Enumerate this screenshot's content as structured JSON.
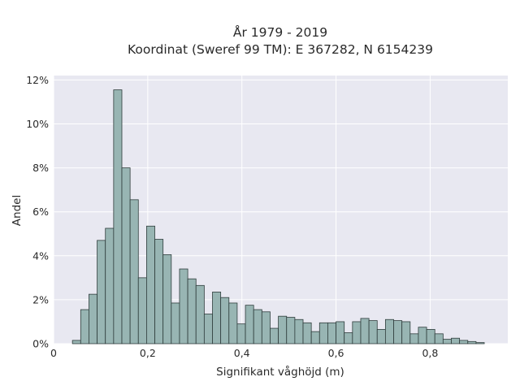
{
  "chart_data": {
    "type": "bar",
    "title": "År 1979 - 2019",
    "subtitle": "Koordinat (Sweref 99 TM): E 367282, N 6154239",
    "xlabel": "Signifikant våghöjd (m)",
    "ylabel": "Andel",
    "xlim": [
      0,
      0.965
    ],
    "ylim": [
      0,
      12.2
    ],
    "grid": true,
    "xticks": [
      0,
      0.2,
      0.4,
      0.6,
      0.8
    ],
    "xtick_labels": [
      "0",
      "0,2",
      "0,4",
      "0,6",
      "0,8"
    ],
    "yticks": [
      0,
      2,
      4,
      6,
      8,
      10,
      12
    ],
    "ytick_labels": [
      "0%",
      "2%",
      "4%",
      "6%",
      "8%",
      "10%",
      "12%"
    ],
    "bin_width": 0.0175,
    "bins_start": [
      0.04,
      0.0575,
      0.075,
      0.0925,
      0.11,
      0.1275,
      0.145,
      0.1625,
      0.18,
      0.1975,
      0.215,
      0.2325,
      0.25,
      0.2675,
      0.285,
      0.3025,
      0.32,
      0.3375,
      0.355,
      0.3725,
      0.39,
      0.4075,
      0.425,
      0.4425,
      0.46,
      0.4775,
      0.495,
      0.5125,
      0.53,
      0.5475,
      0.565,
      0.5825,
      0.6,
      0.6175,
      0.635,
      0.6525,
      0.67,
      0.6875,
      0.705,
      0.7225,
      0.74,
      0.7575,
      0.775,
      0.7925,
      0.81,
      0.8275,
      0.845,
      0.8625,
      0.88,
      0.8975
    ],
    "values": [
      0.15,
      1.55,
      2.25,
      4.7,
      5.25,
      11.55,
      8.0,
      6.55,
      3.0,
      5.35,
      4.75,
      4.05,
      1.85,
      3.4,
      2.95,
      2.65,
      1.35,
      2.35,
      2.1,
      1.85,
      0.9,
      1.75,
      1.55,
      1.45,
      0.7,
      1.25,
      1.2,
      1.1,
      0.95,
      0.55,
      0.95,
      0.95,
      1.0,
      0.5,
      1.0,
      1.15,
      1.05,
      0.65,
      1.1,
      1.05,
      1.0,
      0.45,
      0.75,
      0.65,
      0.45,
      0.2,
      0.25,
      0.15,
      0.1,
      0.05
    ]
  }
}
